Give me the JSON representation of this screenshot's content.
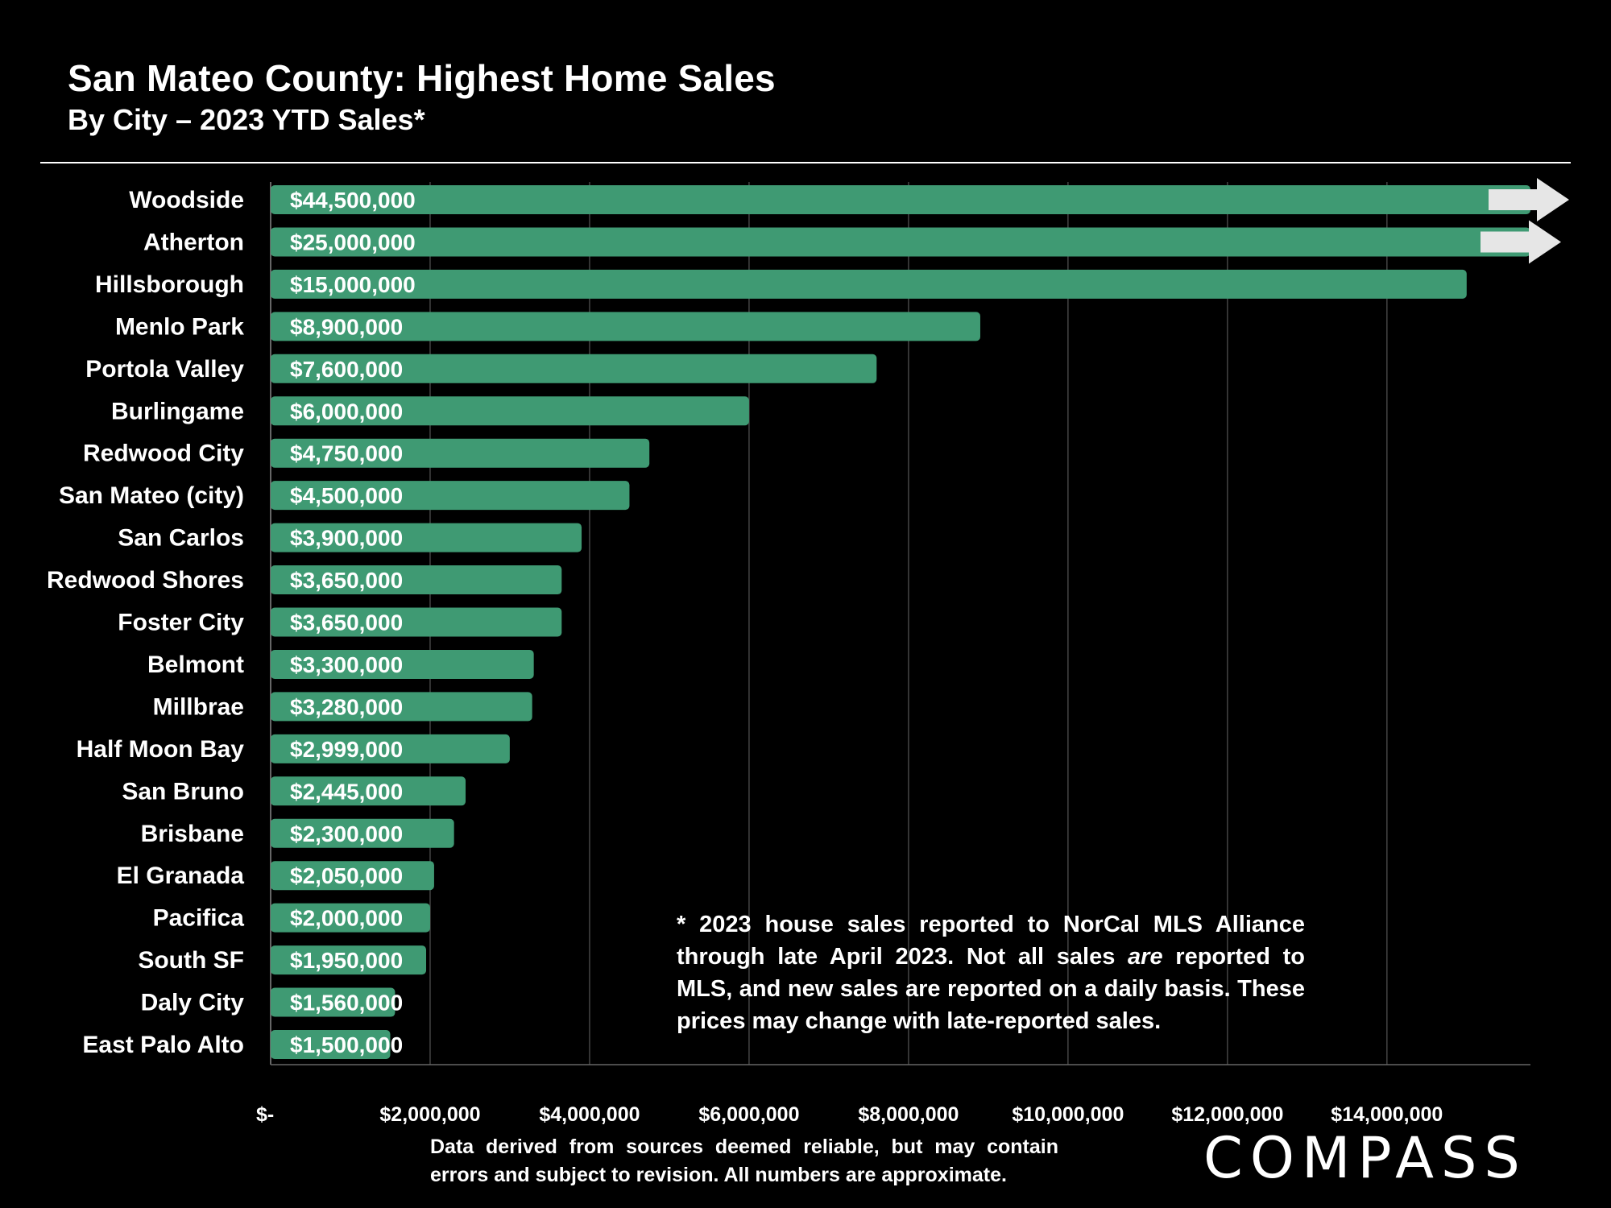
{
  "header": {
    "title": "San Mateo County: Highest Home Sales",
    "subtitle": "By City – 2023 YTD Sales*"
  },
  "footnote": "* 2023 house sales reported to NorCal MLS Alliance through late April 2023. Not all sales are reported to MLS, and new sales are reported on a daily basis. These prices may change with late-reported sales.",
  "source_note": "Data derived from sources deemed reliable, but may contain errors and subject to revision. All numbers are approximate.",
  "logo": "COMPASS",
  "colors": {
    "background": "#000000",
    "bar": "#3f9a73",
    "arrow": "#e6e6e6",
    "gridline": "#444444",
    "text": "#ffffff"
  },
  "chart_data": {
    "type": "bar",
    "orientation": "horizontal",
    "title": "San Mateo County: Highest Home Sales",
    "subtitle": "By City – 2023 YTD Sales*",
    "categories": [
      "Woodside",
      "Atherton",
      "Hillsborough",
      "Menlo Park",
      "Portola Valley",
      "Burlingame",
      "Redwood City",
      "San Mateo (city)",
      "San Carlos",
      "Redwood Shores",
      "Foster City",
      "Belmont",
      "Millbrae",
      "Half Moon Bay",
      "San Bruno",
      "Brisbane",
      "El Granada",
      "Pacifica",
      "South SF",
      "Daly City",
      "East Palo Alto"
    ],
    "values": [
      44500000,
      25000000,
      15000000,
      8900000,
      7600000,
      6000000,
      4750000,
      4500000,
      3900000,
      3650000,
      3650000,
      3300000,
      3280000,
      2999000,
      2445000,
      2300000,
      2050000,
      2000000,
      1950000,
      1560000,
      1500000
    ],
    "value_labels": [
      "$44,500,000",
      "$25,000,000",
      "$15,000,000",
      "$8,900,000",
      "$7,600,000",
      "$6,000,000",
      "$4,750,000",
      "$4,500,000",
      "$3,900,000",
      "$3,650,000",
      "$3,650,000",
      "$3,300,000",
      "$3,280,000",
      "$2,999,000",
      "$2,445,000",
      "$2,300,000",
      "$2,050,000",
      "$2,000,000",
      "$1,950,000",
      "$1,560,000",
      "$1,500,000"
    ],
    "truncated_bars": [
      "Woodside",
      "Atherton"
    ],
    "xlim": [
      0,
      15800000
    ],
    "xticks": [
      0,
      2000000,
      4000000,
      6000000,
      8000000,
      10000000,
      12000000,
      14000000
    ],
    "xtick_labels": [
      "$-",
      "$2,000,000",
      "$4,000,000",
      "$6,000,000",
      "$8,000,000",
      "$10,000,000",
      "$12,000,000",
      "$14,000,000"
    ],
    "grid": true,
    "legend": "none"
  }
}
